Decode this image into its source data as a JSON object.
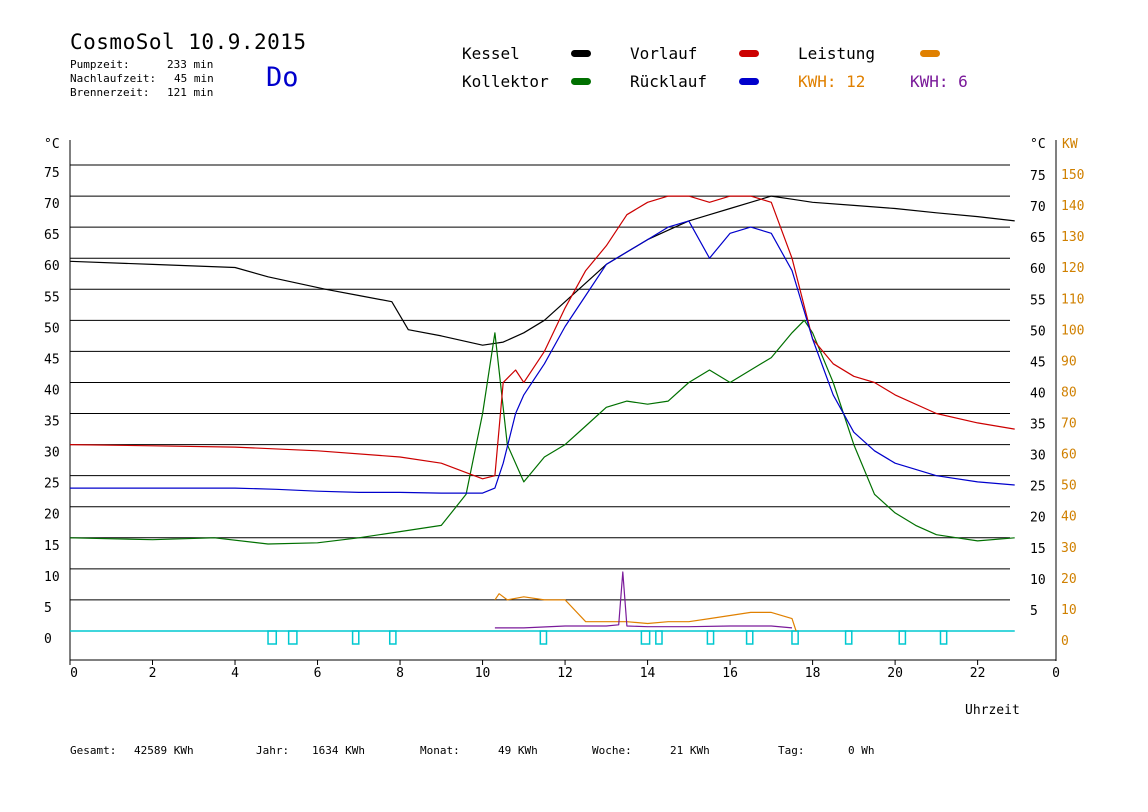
{
  "header": {
    "title": "CosmoSol 10.9.2015",
    "day": "Do",
    "pumpzeit_label": "Pumpzeit:",
    "pumpzeit_value": "233 min",
    "nachlaufzeit_label": "Nachlaufzeit:",
    "nachlaufzeit_value": "45 min",
    "brennerzeit_label": "Brennerzeit:",
    "brennerzeit_value": "121 min"
  },
  "legend": {
    "kessel": "Kessel",
    "kollektor": "Kollektor",
    "vorlauf": "Vorlauf",
    "ruecklauf": "Rücklauf",
    "leistung": "Leistung",
    "kwh_orange": "KWH: 12",
    "kwh_purple": "KWH: 6"
  },
  "footer": {
    "gesamt_label": "Gesamt:",
    "gesamt_value": "42589 KWh",
    "jahr_label": "Jahr:",
    "jahr_value": "1634 KWh",
    "monat_label": "Monat:",
    "monat_value": "49 KWh",
    "woche_label": "Woche:",
    "woche_value": "21 KWh",
    "tag_label": "Tag:",
    "tag_value": "0 Wh"
  },
  "colors": {
    "kessel": "#000000",
    "kollektor": "#007000",
    "vorlauf": "#cc0000",
    "ruecklauf": "#0000cc",
    "leistung": "#e08000",
    "kwh_purple": "#7a1a9a",
    "pump": "#00c8d0",
    "right_axis": "#d08000"
  },
  "chart_data": {
    "type": "line",
    "xlabel": "Uhrzeit",
    "ylabel_left": "°C",
    "ylabel_right_top_left": "°C",
    "ylabel_right_top_right": "KW",
    "xlim": [
      0,
      23.9
    ],
    "ylim": [
      0,
      75
    ],
    "x_ticks": [
      0,
      2,
      4,
      6,
      8,
      10,
      12,
      14,
      16,
      18,
      20,
      22
    ],
    "x_last_tick_label": "0",
    "y_ticks_left": [
      "75",
      "70",
      "65",
      "60",
      "55",
      "50",
      "45",
      "40",
      "35",
      "30",
      "25",
      "20",
      "15",
      "10",
      "5",
      "0"
    ],
    "y_ticks_right_c": [
      "75",
      "70",
      "65",
      "60",
      "55",
      "50",
      "45",
      "40",
      "35",
      "30",
      "25",
      "20",
      "15",
      "10",
      "5"
    ],
    "y_ticks_right_kw": [
      "150",
      "140",
      "130",
      "120",
      "110",
      "100",
      "90",
      "80",
      "70",
      "60",
      "50",
      "40",
      "30",
      "20",
      "10",
      "0"
    ],
    "grid": true,
    "series": [
      {
        "name": "Kessel",
        "key": "kessel",
        "x": [
          0,
          2,
          4,
          4.8,
          5.5,
          6.2,
          7,
          7.8,
          8.2,
          9,
          10,
          10.5,
          11,
          11.5,
          12,
          12.5,
          13,
          13.5,
          14,
          14.5,
          15,
          15.5,
          16,
          16.5,
          17,
          17.5,
          18,
          19,
          20,
          21,
          22,
          22.9
        ],
        "y": [
          59.5,
          59,
          58.5,
          57,
          56,
          55,
          54,
          53,
          48.5,
          47.5,
          46,
          46.5,
          48,
          50,
          53,
          56,
          59,
          61,
          63,
          64.5,
          66,
          67,
          68,
          69,
          70,
          69.5,
          69,
          68.5,
          68,
          67.3,
          66.7,
          66
        ]
      },
      {
        "name": "Kollektor",
        "key": "kollektor",
        "x": [
          0,
          2,
          3.5,
          4.8,
          6,
          7,
          8,
          9,
          9.6,
          10,
          10.3,
          10.6,
          11,
          11.5,
          12,
          12.5,
          13,
          13.5,
          14,
          14.5,
          15,
          15.5,
          16,
          16.5,
          17,
          17.5,
          17.8,
          18,
          18.5,
          19,
          19.5,
          20,
          20.5,
          21,
          21.5,
          22,
          22.9
        ],
        "y": [
          15,
          14.7,
          15,
          14,
          14.2,
          15,
          16,
          17,
          22,
          35,
          48,
          30,
          24,
          28,
          30,
          33,
          36,
          37,
          36.5,
          37,
          40,
          42,
          40,
          42,
          44,
          48,
          50,
          48,
          40,
          30,
          22,
          19,
          17,
          15.5,
          15,
          14.5,
          15
        ]
      },
      {
        "name": "Vorlauf",
        "key": "vorlauf",
        "x": [
          0,
          2,
          4,
          6,
          8,
          9,
          10,
          10.3,
          10.5,
          10.8,
          11,
          11.5,
          12,
          12.5,
          13,
          13.5,
          14,
          14.5,
          15,
          15.5,
          16,
          16.5,
          17,
          17.5,
          18,
          18.5,
          19,
          19.5,
          20,
          21,
          22,
          22.9
        ],
        "y": [
          30,
          29.8,
          29.6,
          29,
          28,
          27,
          24.5,
          25,
          40,
          42,
          40,
          45,
          52,
          58,
          62,
          67,
          69,
          70,
          70,
          69,
          70,
          70,
          69,
          60,
          47,
          43,
          41,
          40,
          38,
          35,
          33.5,
          32.5
        ]
      },
      {
        "name": "Rücklauf",
        "key": "ruecklauf",
        "x": [
          0,
          2,
          4,
          5,
          6,
          7,
          8,
          9,
          10,
          10.3,
          10.5,
          10.8,
          11,
          11.5,
          12,
          12.5,
          13,
          13.5,
          14,
          14.5,
          15,
          15.5,
          16,
          16.5,
          17,
          17.5,
          18,
          18.5,
          19,
          19.5,
          20,
          21,
          22,
          22.9
        ],
        "y": [
          23,
          23,
          23,
          22.8,
          22.5,
          22.3,
          22.3,
          22.2,
          22.2,
          23,
          27,
          35,
          38,
          43,
          49,
          54,
          59,
          61,
          63,
          65,
          66,
          60,
          64,
          65,
          64,
          58,
          47,
          38,
          32,
          29,
          27,
          25,
          24,
          23.5
        ]
      },
      {
        "name": "Leistung",
        "key": "leistung",
        "x": [
          10.3,
          10.4,
          10.6,
          11,
          11.5,
          12,
          12.5,
          13,
          13.5,
          14,
          14.5,
          15,
          15.5,
          16,
          16.5,
          17,
          17.5,
          17.6
        ],
        "y": [
          5,
          6,
          5,
          5.5,
          5,
          5,
          1.5,
          1.5,
          1.5,
          1.2,
          1.5,
          1.5,
          2,
          2.5,
          3,
          3,
          2,
          0
        ]
      },
      {
        "name": "KWH purple",
        "key": "kwh_purple",
        "x": [
          10.3,
          11,
          12,
          13,
          13.3,
          13.4,
          13.5,
          14,
          15,
          16,
          17,
          17.5
        ],
        "y": [
          0.5,
          0.5,
          0.8,
          0.8,
          1,
          9.5,
          0.8,
          0.7,
          0.7,
          0.8,
          0.8,
          0.5
        ]
      }
    ],
    "pump_intervals": [
      [
        4.8,
        5.0
      ],
      [
        5.3,
        5.5
      ],
      [
        6.85,
        7.0
      ],
      [
        7.75,
        7.9
      ],
      [
        11.4,
        11.55
      ],
      [
        13.85,
        14.05
      ],
      [
        14.2,
        14.35
      ],
      [
        15.45,
        15.6
      ],
      [
        16.4,
        16.55
      ],
      [
        17.5,
        17.65
      ],
      [
        18.8,
        18.95
      ],
      [
        20.1,
        20.25
      ],
      [
        21.1,
        21.25
      ]
    ]
  }
}
